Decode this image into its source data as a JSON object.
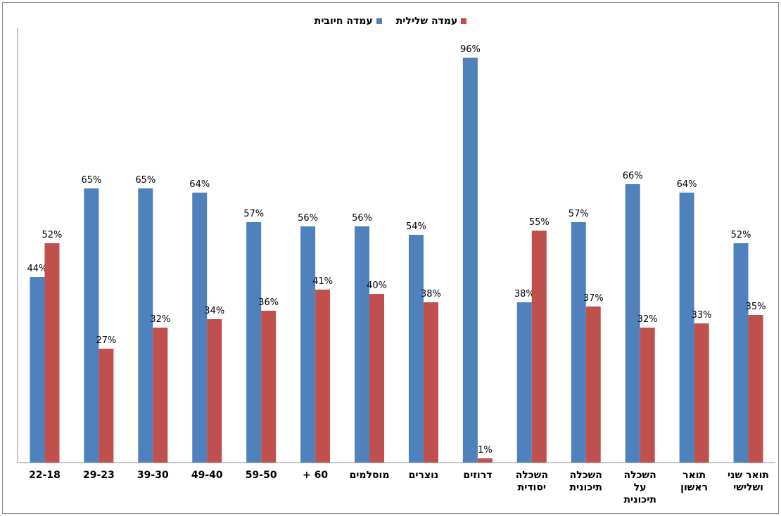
{
  "chart_data": {
    "type": "bar",
    "categories": [
      [
        "22-18"
      ],
      [
        "29-23"
      ],
      [
        "39-30"
      ],
      [
        "49-40"
      ],
      [
        "59-50"
      ],
      [
        "60 +"
      ],
      [
        "מוסלמים"
      ],
      [
        "נוצרים"
      ],
      [
        "דרוזים"
      ],
      [
        "השכלה",
        "יסודית"
      ],
      [
        "השכלה",
        "תיכונית"
      ],
      [
        "השכלה",
        "על",
        "תיכונית"
      ],
      [
        "תואר",
        "ראשון"
      ],
      [
        "תואר שני",
        "ושלישי"
      ]
    ],
    "series": [
      {
        "name": "עמדה חיובית",
        "color": "#4f81bd",
        "values": [
          44,
          65,
          65,
          64,
          57,
          56,
          56,
          54,
          96,
          38,
          57,
          66,
          64,
          52
        ]
      },
      {
        "name": "עמדה שלילית",
        "color": "#c0504d",
        "values": [
          52,
          27,
          32,
          34,
          36,
          41,
          40,
          38,
          1,
          55,
          37,
          32,
          33,
          35
        ]
      }
    ],
    "value_suffix": "%",
    "ylim": [
      0,
      100
    ],
    "grid": false,
    "legend_position": "top"
  }
}
